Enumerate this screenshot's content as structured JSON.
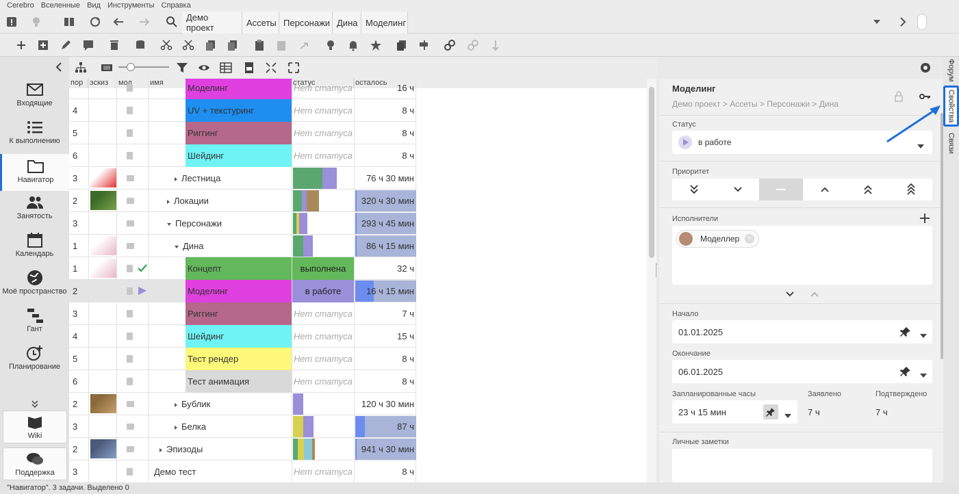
{
  "menu": [
    "Cerebro",
    "Вселенные",
    "Вид",
    "Инструменты",
    "Справка"
  ],
  "breadcrumb_tabs": [
    "Демо проект",
    "Ассеты",
    "Персонажи",
    "Дина",
    "Моделинг"
  ],
  "sidebar": {
    "items": [
      {
        "label": "Входящие",
        "icon": "mail-icon"
      },
      {
        "label": "К выполнению",
        "icon": "list-icon"
      },
      {
        "label": "Навигатор",
        "icon": "folder-icon"
      },
      {
        "label": "Занятость",
        "icon": "people-icon"
      },
      {
        "label": "Календарь",
        "icon": "calendar-icon"
      },
      {
        "label": "Моё пространство",
        "icon": "globe-icon"
      },
      {
        "label": "Гант",
        "icon": "gantt-icon"
      },
      {
        "label": "Планирование",
        "icon": "clock-plus-icon"
      }
    ],
    "wiki": "Wiki",
    "support": "Поддержка"
  },
  "grid": {
    "headers": [
      "пор",
      "эскиз",
      "мод",
      "имя",
      "статус",
      "осталось"
    ],
    "rows": [
      {
        "num": "",
        "name": "Моделинг",
        "kind": "task",
        "color": "#e040e0",
        "status": "Нет статуса",
        "left": "16 ч"
      },
      {
        "num": "4",
        "name": "UV + текстуринг",
        "kind": "task",
        "color": "#1e8ef0",
        "status": "Нет статуса",
        "left": "8 ч"
      },
      {
        "num": "5",
        "name": "Риггинг",
        "kind": "task",
        "color": "#b5688a",
        "status": "Нет статуса",
        "left": "8 ч"
      },
      {
        "num": "6",
        "name": "Шейдинг",
        "kind": "task",
        "color": "#6ff3f5",
        "status": "Нет статуса",
        "left": "8 ч"
      },
      {
        "num": "3",
        "name": "Лестница",
        "kind": "folder",
        "indent": 2,
        "left": "76 ч 30 мин"
      },
      {
        "num": "2",
        "name": "Локации",
        "kind": "folder",
        "indent": 1,
        "left": "320 ч 30 мин"
      },
      {
        "num": "3",
        "name": "Персонажи",
        "kind": "folder-open",
        "indent": 1,
        "left": "293 ч 45 мин"
      },
      {
        "num": "1",
        "name": "Дина",
        "kind": "folder-open",
        "indent": 2,
        "left": "86 ч 15 мин"
      },
      {
        "num": "1",
        "name": "Концепт",
        "kind": "task",
        "color": "#62b85a",
        "status": "выполнена",
        "left": "32 ч"
      },
      {
        "num": "2",
        "name": "Моделинг",
        "kind": "task",
        "color": "#e040e0",
        "status": "в работе",
        "left": "16 ч 15 мин"
      },
      {
        "num": "3",
        "name": "Риггинг",
        "kind": "task",
        "color": "#b5688a",
        "status": "Нет статуса",
        "left": "7 ч"
      },
      {
        "num": "4",
        "name": "Шейдинг",
        "kind": "task",
        "color": "#6ff3f5",
        "status": "Нет статуса",
        "left": "15 ч"
      },
      {
        "num": "5",
        "name": "Тест рендер",
        "kind": "task",
        "color": "#fdf77a",
        "status": "Нет статуса",
        "left": "8 ч"
      },
      {
        "num": "6",
        "name": "Тест анимация",
        "kind": "task",
        "color": "#d9d9d9",
        "status": "Нет статуса",
        "left": "8 ч"
      },
      {
        "num": "2",
        "name": "Бублик",
        "kind": "folder",
        "indent": 2,
        "left": "120 ч 30 мин"
      },
      {
        "num": "3",
        "name": "Белка",
        "kind": "folder",
        "indent": 2,
        "left": "87 ч"
      },
      {
        "num": "2",
        "name": "Эпизоды",
        "kind": "folder",
        "indent": 0,
        "left": "941 ч 30 мин"
      },
      {
        "num": "3",
        "name": "Демо тест",
        "kind": "plain",
        "status": "Нет статуса",
        "left": "8 ч"
      }
    ]
  },
  "panel": {
    "title": "Моделинг",
    "path": [
      "Демо проект",
      "Ассеты",
      "Персонажи",
      "Дина"
    ],
    "status_label": "Статус",
    "status_value": "в работе",
    "priority_label": "Приоритет",
    "assignees_label": "Исполнители",
    "assignee": "Моделлер",
    "start_label": "Начало",
    "start_value": "01.01.2025",
    "end_label": "Окончание",
    "end_value": "06.01.2025",
    "planned_label": "Запланированные часы",
    "planned_value": "23 ч 15 мин",
    "declared_label": "Заявлено",
    "declared_value": "7 ч",
    "approved_label": "Подтверждено",
    "approved_value": "7 ч",
    "notes_label": "Личные заметки"
  },
  "right_tabs": [
    "Форум",
    "Свойства",
    "Связи"
  ],
  "statusbar": "\"Навигатор\". 3 задачи. Выделено 0",
  "colors": {
    "accent": "#1e6fd9",
    "done": "#62b85a",
    "in_progress": "#9a8fd8"
  }
}
